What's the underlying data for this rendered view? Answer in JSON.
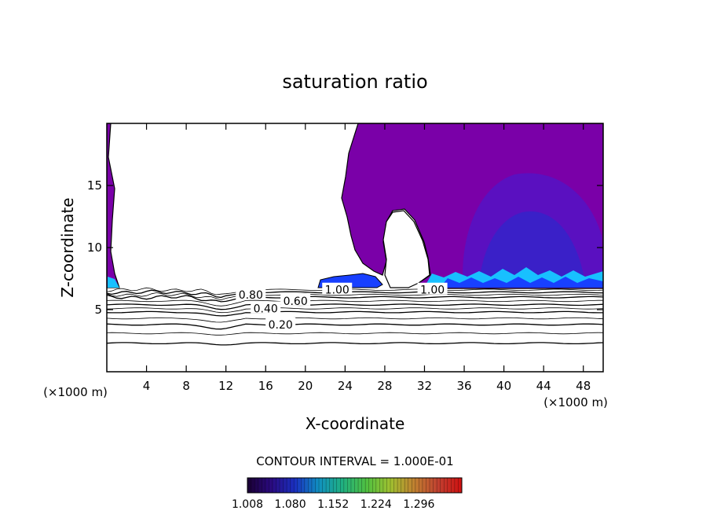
{
  "chart_data": {
    "type": "contour",
    "title": "saturation ratio",
    "xlabel": "X-coordinate",
    "ylabel": "Z-coordinate",
    "x_unit_left": "(×1000 m)",
    "x_unit_right": "(×1000 m)",
    "xlim": [
      0,
      50
    ],
    "ylim": [
      0,
      20
    ],
    "x_ticks": [
      4,
      8,
      12,
      16,
      20,
      24,
      28,
      32,
      36,
      40,
      44,
      48
    ],
    "y_ticks": [
      5,
      10,
      15
    ],
    "contour_interval_label": "CONTOUR INTERVAL = 1.000E-01",
    "contour_levels": [
      {
        "value": 0.2,
        "label": "0.20",
        "z": 3.8,
        "label_x": 17.5
      },
      {
        "value": 0.4,
        "label": "0.40",
        "z": 5.1,
        "label_x": 16.0
      },
      {
        "value": 0.6,
        "label": "0.60",
        "z": 5.7,
        "label_x": 19.0
      },
      {
        "value": 0.8,
        "label": "0.80",
        "z": 6.2,
        "label_x": 14.5
      },
      {
        "value": 1.0,
        "label": "1.00",
        "z": 6.6,
        "label_x": 23.2
      },
      {
        "value": 1.0,
        "label": "1.00",
        "z": 6.6,
        "label_x": 32.8
      }
    ],
    "colorbar": {
      "ticks": [
        "1.008",
        "1.080",
        "1.152",
        "1.224",
        "1.296"
      ],
      "colors": [
        "#1a0033",
        "#2a0a80",
        "#1a30c0",
        "#1090c0",
        "#20b080",
        "#50c040",
        "#a0c030",
        "#c08030",
        "#c04030",
        "#d01010"
      ]
    },
    "fill_colors": {
      "supersaturated": "#7a00a8",
      "core": "#5a10c0",
      "deep": "#3a20c8",
      "cyan": "#18c0ff",
      "blue": "#1840ff"
    }
  }
}
